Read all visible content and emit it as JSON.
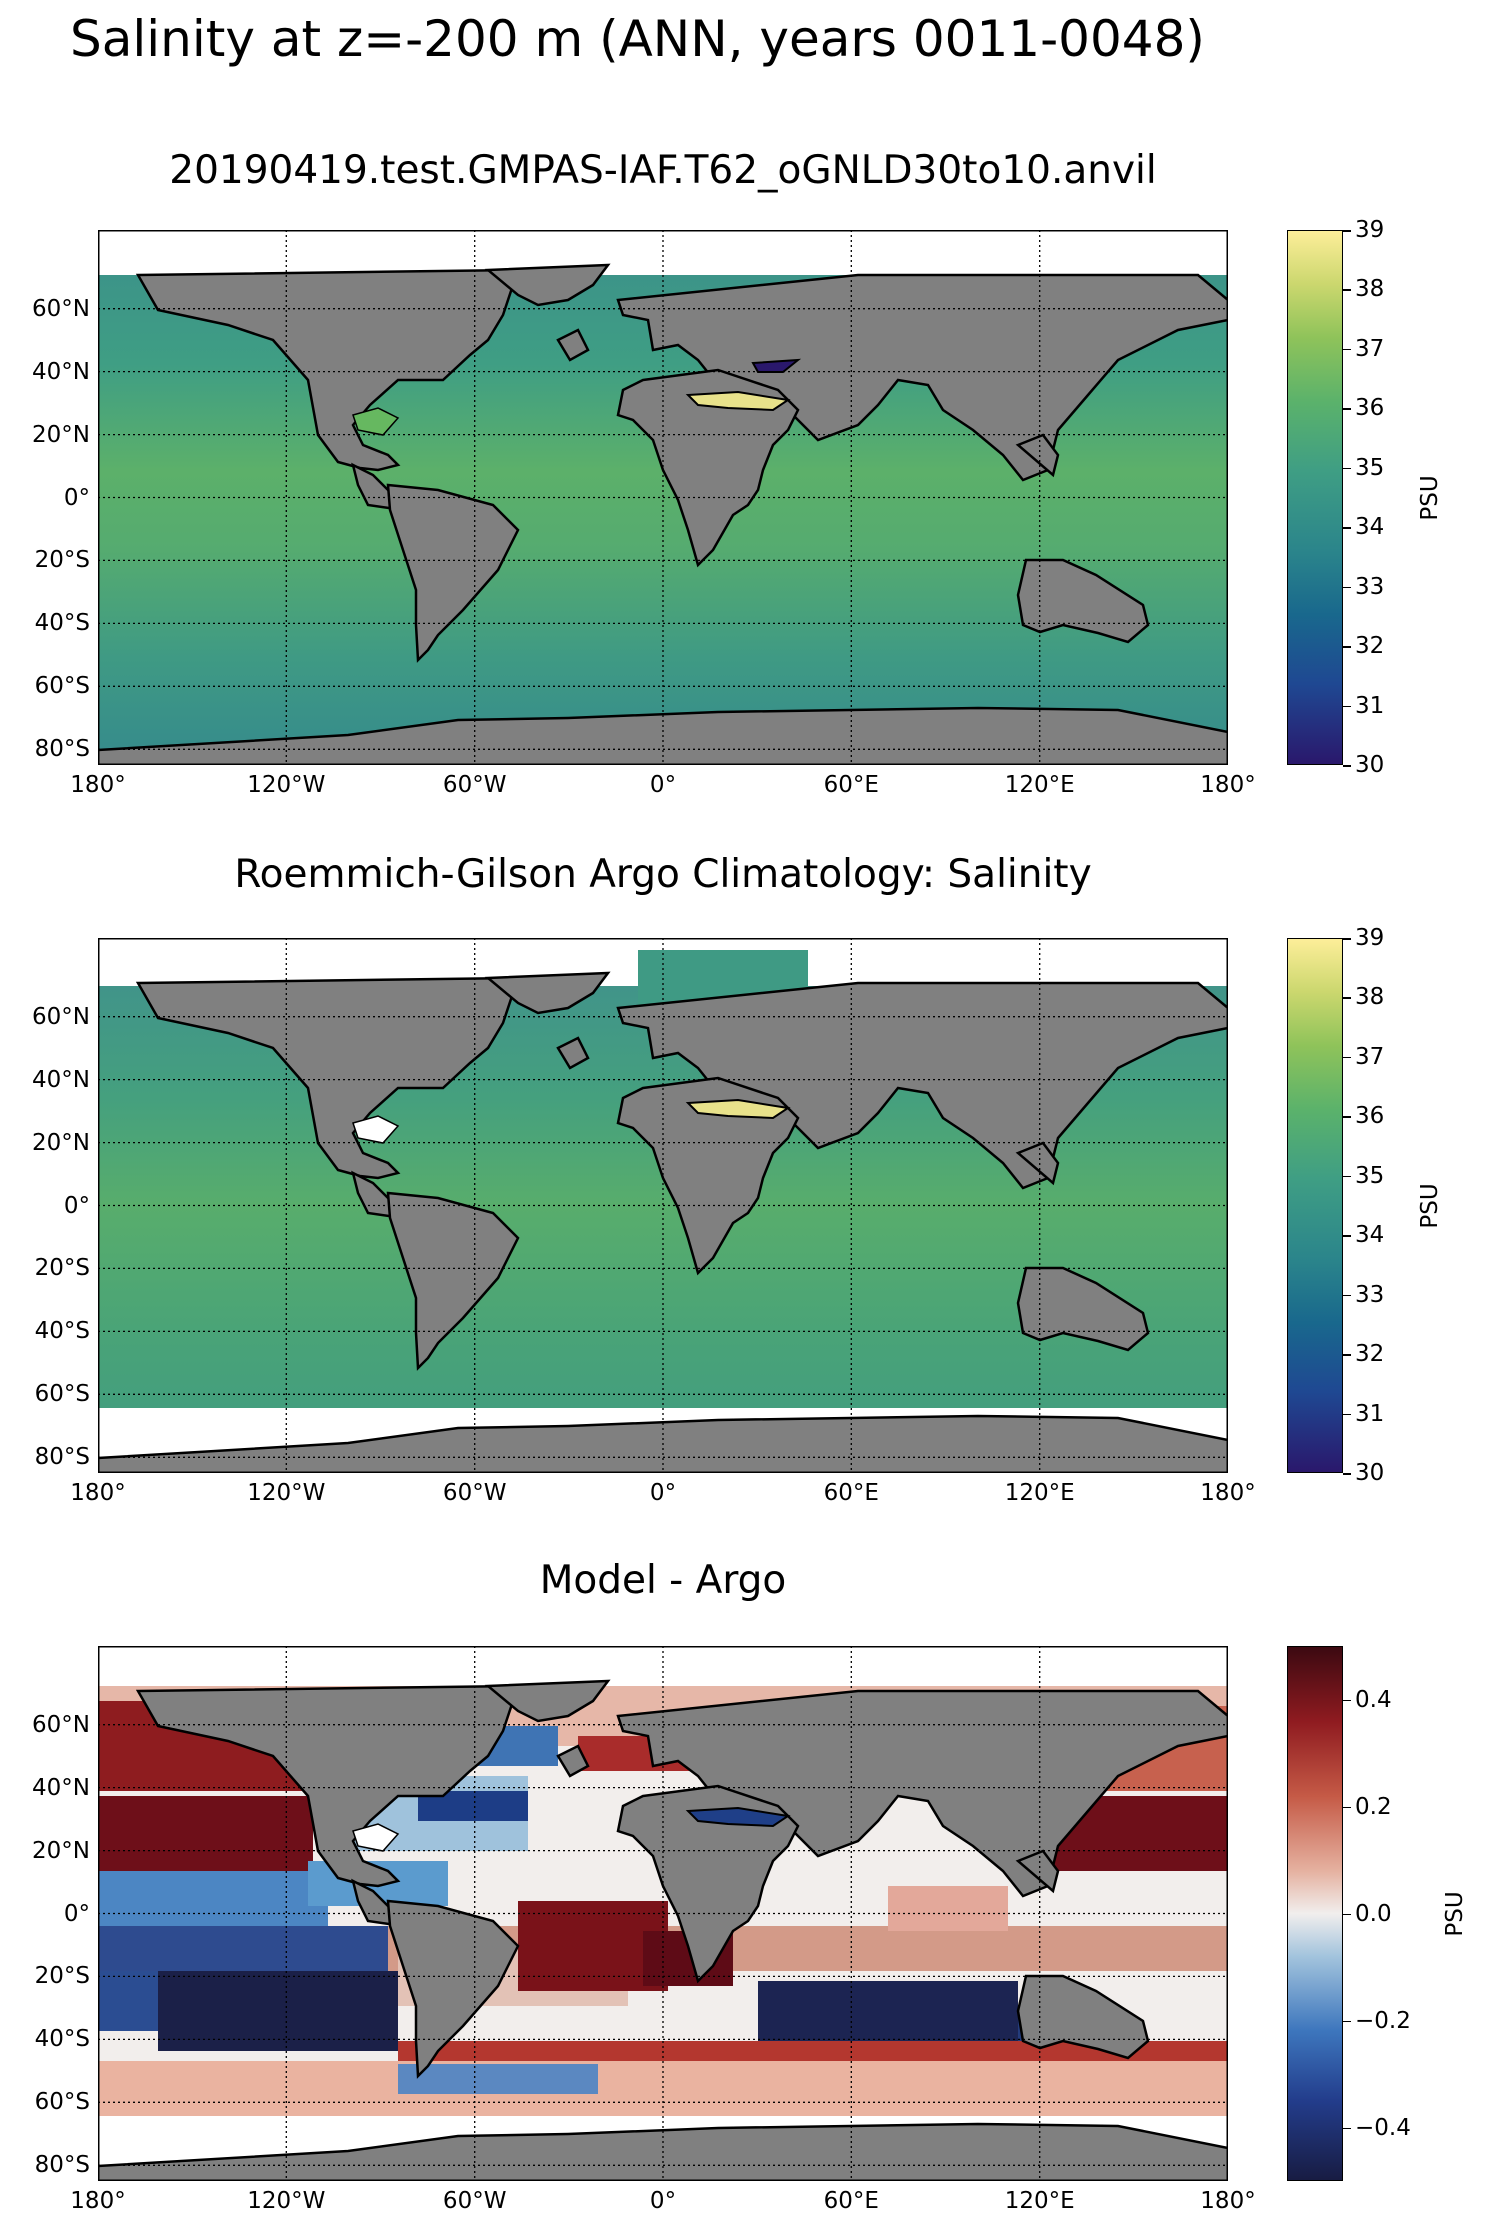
{
  "figure": {
    "suptitle": "Salinity at z=-200 m (ANN, years 0011-0048)"
  },
  "panels": [
    {
      "title": "20190419.test.GMPAS-IAF.T62_oGNLD30to10.anvil",
      "colormap": "haline",
      "colorbar": {
        "label": "PSU",
        "min": 30,
        "max": 39,
        "ticks": [
          "30",
          "31",
          "32",
          "33",
          "34",
          "35",
          "36",
          "37",
          "38",
          "39"
        ]
      }
    },
    {
      "title": "Roemmich-Gilson Argo Climatology: Salinity",
      "colormap": "haline",
      "colorbar": {
        "label": "PSU",
        "min": 30,
        "max": 39,
        "ticks": [
          "30",
          "31",
          "32",
          "33",
          "34",
          "35",
          "36",
          "37",
          "38",
          "39"
        ]
      }
    },
    {
      "title": "Model - Argo",
      "colormap": "balance",
      "colorbar": {
        "label": "PSU",
        "min": -0.5,
        "max": 0.5,
        "ticks": [
          "−0.4",
          "−0.2",
          "0.0",
          "0.2",
          "0.4"
        ],
        "tick_values": [
          -0.4,
          -0.2,
          0.0,
          0.2,
          0.4
        ]
      }
    }
  ],
  "axes": {
    "lat_ticks": [
      "60°N",
      "40°N",
      "20°N",
      "0°",
      "20°S",
      "40°S",
      "60°S",
      "80°S"
    ],
    "lat_values": [
      60,
      40,
      20,
      0,
      -20,
      -40,
      -60,
      -80
    ],
    "lon_ticks": [
      "180°",
      "120°W",
      "60°W",
      "0°",
      "60°E",
      "120°E",
      "180°"
    ],
    "lon_values": [
      -180,
      -120,
      -60,
      0,
      60,
      120,
      180
    ],
    "lat_range": [
      -85,
      85
    ],
    "lon_range": [
      -180,
      180
    ]
  },
  "colors": {
    "land": "#808080",
    "missing": "#ffffff",
    "haline_min": "#2a186c",
    "haline_max": "#fdee99",
    "balance_min": "#181c43",
    "balance_max": "#3c0911"
  }
}
